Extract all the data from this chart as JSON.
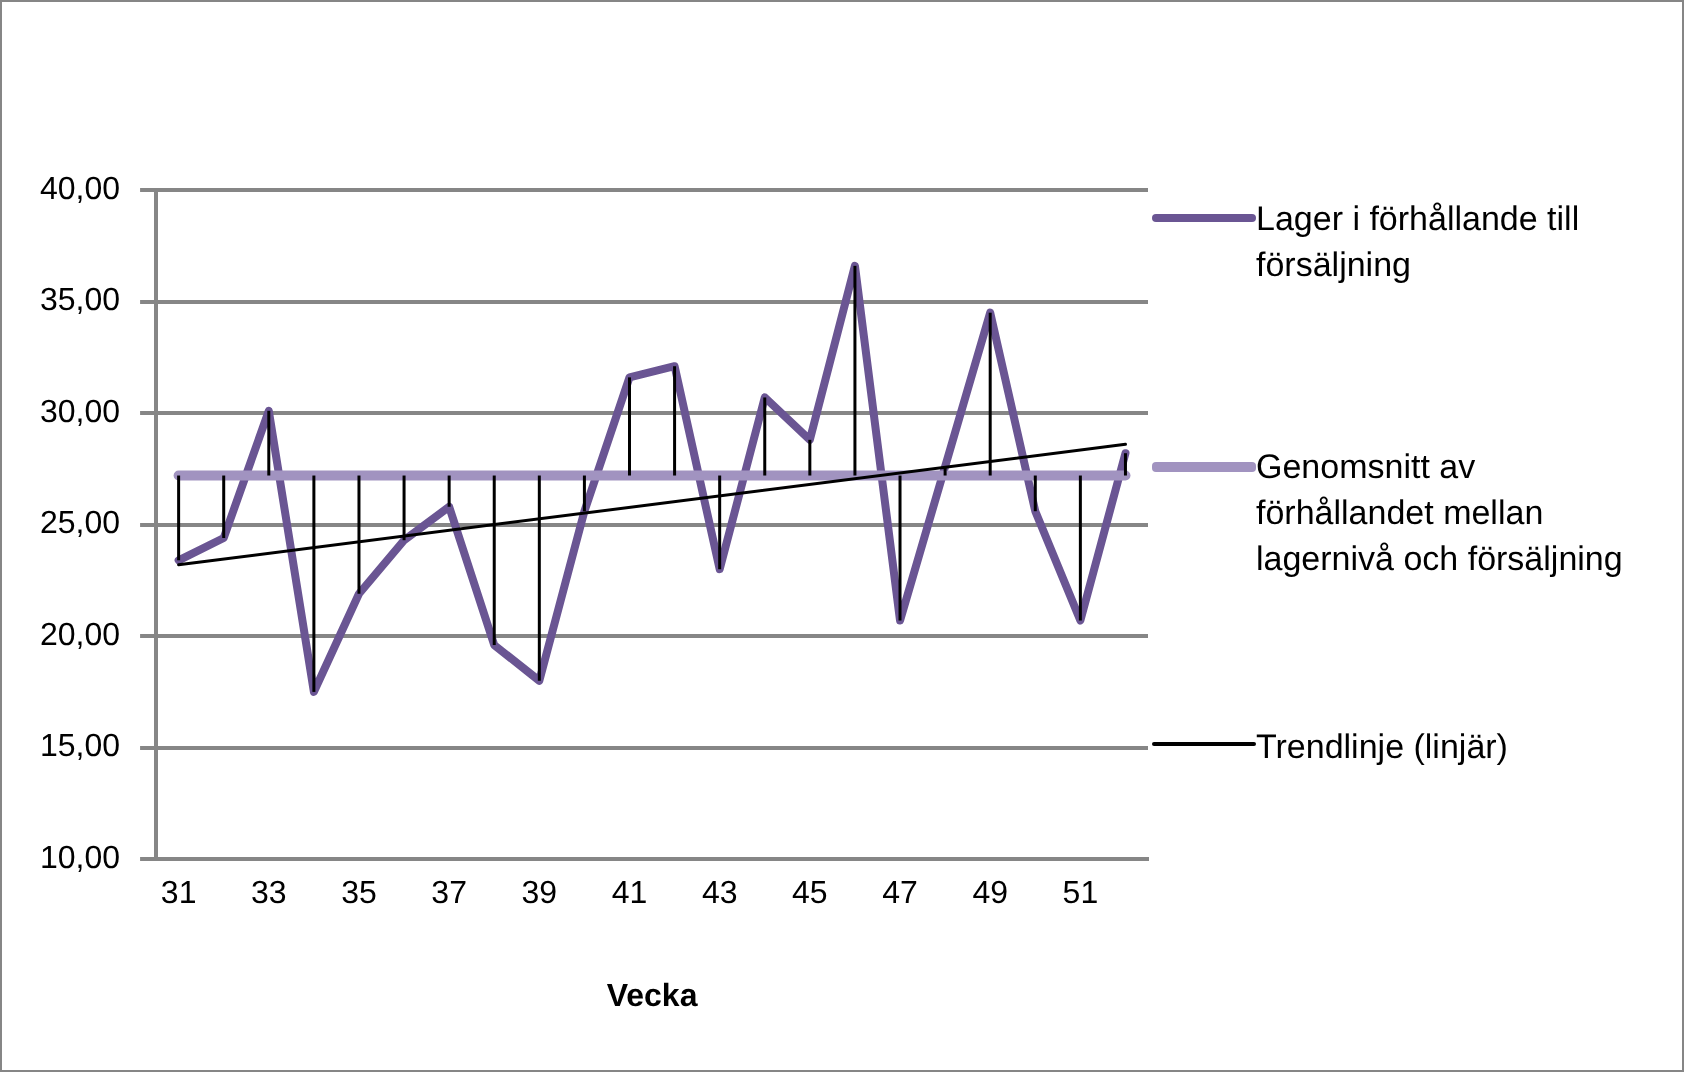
{
  "chart_data": {
    "type": "line",
    "xlabel": "Vecka",
    "x": [
      31,
      32,
      33,
      34,
      35,
      36,
      37,
      38,
      39,
      40,
      41,
      42,
      43,
      44,
      45,
      46,
      47,
      48,
      49,
      50,
      51,
      52
    ],
    "xlim": [
      30.5,
      52.5
    ],
    "xticks": [
      31,
      33,
      35,
      37,
      39,
      41,
      43,
      45,
      47,
      49,
      51
    ],
    "ylim": [
      10,
      40
    ],
    "yticks": [
      {
        "value": 10,
        "label": "10,00"
      },
      {
        "value": 15,
        "label": "15,00"
      },
      {
        "value": 20,
        "label": "20,00"
      },
      {
        "value": 25,
        "label": "25,00"
      },
      {
        "value": 30,
        "label": "30,00"
      },
      {
        "value": 35,
        "label": "35,00"
      },
      {
        "value": 40,
        "label": "40,00"
      }
    ],
    "grid": "y",
    "legend": "right",
    "marker": "none",
    "series": [
      {
        "name": "Lager i förhållande till försäljning",
        "color": "#6a5593",
        "values": [
          23.4,
          24.4,
          30.1,
          17.5,
          21.9,
          24.3,
          25.8,
          19.6,
          18.0,
          25.6,
          31.6,
          32.1,
          23.0,
          30.7,
          28.8,
          36.6,
          20.7,
          27.6,
          34.5,
          25.6,
          20.7,
          28.2
        ],
        "errors": [
          [
            23.4,
            27.2
          ],
          [
            24.4,
            27.2
          ],
          [
            27.2,
            30.1
          ],
          [
            17.5,
            27.2
          ],
          [
            21.9,
            27.2
          ],
          [
            24.3,
            27.2
          ],
          [
            25.8,
            27.2
          ],
          [
            19.6,
            27.2
          ],
          [
            18.0,
            27.2
          ],
          [
            25.6,
            27.2
          ],
          [
            27.2,
            31.6
          ],
          [
            27.2,
            32.1
          ],
          [
            23.0,
            27.2
          ],
          [
            27.2,
            30.7
          ],
          [
            27.2,
            28.8
          ],
          [
            27.2,
            36.6
          ],
          [
            20.7,
            27.2
          ],
          [
            27.2,
            27.6
          ],
          [
            27.2,
            34.5
          ],
          [
            25.6,
            27.2
          ],
          [
            20.7,
            27.2
          ],
          [
            27.2,
            28.2
          ]
        ]
      },
      {
        "name": "Genomsnitt av förhållandet mellan lagernivå och försäljning",
        "color": "#a193c0",
        "values": [
          27.2,
          27.2,
          27.2,
          27.2,
          27.2,
          27.2,
          27.2,
          27.2,
          27.2,
          27.2,
          27.2,
          27.2,
          27.2,
          27.2,
          27.2,
          27.2,
          27.2,
          27.2,
          27.2,
          27.2,
          27.2,
          27.2
        ]
      },
      {
        "name": "Trendlinje (linjär)",
        "color": "#000000",
        "x": [
          31,
          52
        ],
        "values": [
          23.2,
          28.6
        ]
      }
    ]
  }
}
